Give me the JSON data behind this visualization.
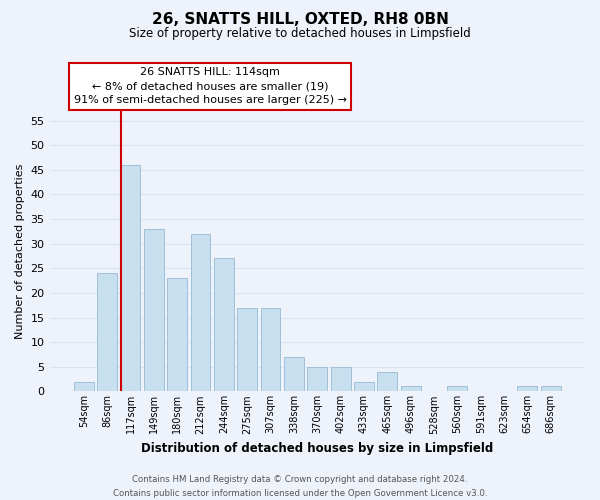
{
  "title": "26, SNATTS HILL, OXTED, RH8 0BN",
  "subtitle": "Size of property relative to detached houses in Limpsfield",
  "xlabel": "Distribution of detached houses by size in Limpsfield",
  "ylabel": "Number of detached properties",
  "bar_labels": [
    "54sqm",
    "86sqm",
    "117sqm",
    "149sqm",
    "180sqm",
    "212sqm",
    "244sqm",
    "275sqm",
    "307sqm",
    "338sqm",
    "370sqm",
    "402sqm",
    "433sqm",
    "465sqm",
    "496sqm",
    "528sqm",
    "560sqm",
    "591sqm",
    "623sqm",
    "654sqm",
    "686sqm"
  ],
  "bar_values": [
    2,
    24,
    46,
    33,
    23,
    32,
    27,
    17,
    17,
    7,
    5,
    5,
    2,
    4,
    1,
    0,
    1,
    0,
    0,
    1,
    1
  ],
  "bar_color": "#c8dff0",
  "bar_edge_color": "#a0c0d8",
  "highlight_bar_index": 2,
  "highlight_color": "#cc0000",
  "ylim": [
    0,
    57
  ],
  "yticks": [
    0,
    5,
    10,
    15,
    20,
    25,
    30,
    35,
    40,
    45,
    50,
    55
  ],
  "annotation_title": "26 SNATTS HILL: 114sqm",
  "annotation_line1": "← 8% of detached houses are smaller (19)",
  "annotation_line2": "91% of semi-detached houses are larger (225) →",
  "annotation_box_color": "#ffffff",
  "annotation_box_edgecolor": "#cc0000",
  "footer_line1": "Contains HM Land Registry data © Crown copyright and database right 2024.",
  "footer_line2": "Contains public sector information licensed under the Open Government Licence v3.0.",
  "background_color": "#eef2fb",
  "grid_color": "#d8e4f0"
}
